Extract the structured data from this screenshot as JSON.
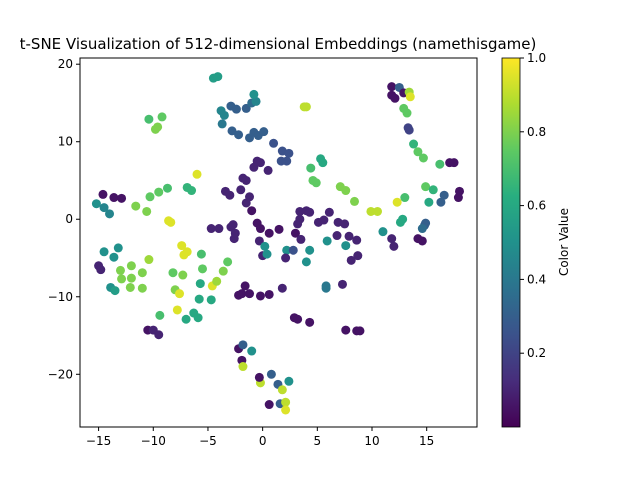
{
  "chart_data": {
    "type": "scatter",
    "title": "t-SNE Visualization of 512-dimensional Embeddings (namethisgame)",
    "xlabel": "",
    "ylabel": "",
    "xlim": [
      -16.7,
      19.6
    ],
    "ylim": [
      -26.8,
      20.8
    ],
    "xticks": [
      -15,
      -10,
      -5,
      0,
      5,
      10,
      15
    ],
    "yticks": [
      -20,
      -10,
      0,
      10,
      20
    ],
    "grid": false,
    "colormap": "viridis",
    "colorbar": {
      "label": "Color Value",
      "range": [
        0.0,
        1.0
      ],
      "ticks": [
        0.2,
        0.4,
        0.6,
        0.8,
        1.0
      ]
    },
    "points": [
      [
        -15.2,
        2.0,
        0.5
      ],
      [
        -14.5,
        1.5,
        0.45
      ],
      [
        -14.0,
        0.7,
        0.45
      ],
      [
        -14.6,
        3.2,
        0.05
      ],
      [
        -13.6,
        2.8,
        0.05
      ],
      [
        -12.9,
        2.7,
        0.05
      ],
      [
        -15.0,
        -6.0,
        0.1
      ],
      [
        -14.8,
        -6.5,
        0.1
      ],
      [
        -14.5,
        -4.2,
        0.5
      ],
      [
        -13.9,
        -8.8,
        0.5
      ],
      [
        -13.5,
        -9.2,
        0.55
      ],
      [
        -13.2,
        -3.7,
        0.5
      ],
      [
        -13.6,
        -4.9,
        0.5
      ],
      [
        -13.0,
        -6.6,
        0.8
      ],
      [
        -12.9,
        -7.7,
        0.8
      ],
      [
        -12.0,
        -6.0,
        0.8
      ],
      [
        -12.0,
        -7.6,
        0.8
      ],
      [
        -12.1,
        -8.8,
        0.8
      ],
      [
        -11.6,
        1.7,
        0.8
      ],
      [
        -11.0,
        -6.9,
        0.8
      ],
      [
        -11.0,
        -8.9,
        0.8
      ],
      [
        -10.6,
        1.0,
        0.8
      ],
      [
        -10.4,
        -5.2,
        0.85
      ],
      [
        -10.3,
        2.9,
        0.75
      ],
      [
        -10.4,
        12.9,
        0.7
      ],
      [
        -9.8,
        11.6,
        0.8
      ],
      [
        -9.6,
        11.9,
        0.8
      ],
      [
        -9.2,
        13.2,
        0.75
      ],
      [
        -9.5,
        3.5,
        0.75
      ],
      [
        -8.7,
        4.0,
        0.7
      ],
      [
        -8.6,
        -0.2,
        0.95
      ],
      [
        -8.4,
        -0.4,
        0.95
      ],
      [
        -8.2,
        -6.9,
        0.75
      ],
      [
        -8.0,
        -9.1,
        0.8
      ],
      [
        -7.6,
        -9.6,
        0.95
      ],
      [
        -7.4,
        -3.4,
        0.95
      ],
      [
        -7.3,
        -7.2,
        0.8
      ],
      [
        -7.2,
        -4.6,
        0.95
      ],
      [
        -6.9,
        -4.2,
        0.95
      ],
      [
        -9.4,
        -12.4,
        0.7
      ],
      [
        -7.8,
        -11.7,
        0.95
      ],
      [
        -7.0,
        -12.9,
        0.6
      ],
      [
        -6.3,
        -12.1,
        0.6
      ],
      [
        -5.9,
        -12.7,
        0.6
      ],
      [
        -6.9,
        4.1,
        0.65
      ],
      [
        -6.5,
        3.7,
        0.65
      ],
      [
        -6.0,
        5.8,
        0.95
      ],
      [
        -5.6,
        -4.5,
        0.7
      ],
      [
        -5.5,
        -6.4,
        0.75
      ],
      [
        -5.7,
        -8.3,
        0.6
      ],
      [
        -5.8,
        -10.3,
        0.6
      ],
      [
        -4.7,
        -10.4,
        0.6
      ],
      [
        -4.6,
        -8.6,
        0.95
      ],
      [
        -4.2,
        -8.0,
        0.85
      ],
      [
        -3.6,
        -6.7,
        0.8
      ],
      [
        -3.2,
        -5.5,
        0.75
      ],
      [
        -4.7,
        -1.2,
        0.1
      ],
      [
        -4.0,
        -1.2,
        0.1
      ],
      [
        -2.9,
        -1.0,
        0.1
      ],
      [
        -2.6,
        -2.5,
        0.1
      ],
      [
        -2.5,
        -1.8,
        0.1
      ],
      [
        -3.4,
        3.6,
        0.1
      ],
      [
        -3.0,
        3.1,
        0.1
      ],
      [
        -2.0,
        3.8,
        0.1
      ],
      [
        -1.8,
        5.3,
        0.1
      ],
      [
        -1.5,
        5.0,
        0.1
      ],
      [
        -1.5,
        2.1,
        0.1
      ],
      [
        -1.2,
        2.9,
        0.1
      ],
      [
        -0.8,
        6.7,
        0.1
      ],
      [
        -0.5,
        7.5,
        0.1
      ],
      [
        -0.2,
        7.3,
        0.1
      ],
      [
        0.5,
        6.3,
        0.1
      ],
      [
        -1.6,
        -8.6,
        0.05
      ],
      [
        -1.9,
        -9.6,
        0.05
      ],
      [
        -2.2,
        -9.8,
        0.05
      ],
      [
        -1.2,
        -9.6,
        0.05
      ],
      [
        -0.2,
        -9.9,
        0.05
      ],
      [
        0.6,
        -9.7,
        0.05
      ],
      [
        -0.3,
        -2.8,
        0.1
      ],
      [
        0.0,
        -4.7,
        0.1
      ],
      [
        0.2,
        -3.5,
        0.5
      ],
      [
        0.4,
        -4.5,
        0.5
      ],
      [
        -0.5,
        -0.5,
        0.05
      ],
      [
        -0.2,
        -1.2,
        0.05
      ],
      [
        0.6,
        -1.8,
        0.05
      ],
      [
        1.5,
        -1.3,
        0.05
      ],
      [
        -1.0,
        1.1,
        0.05
      ],
      [
        -2.7,
        -0.7,
        0.1
      ],
      [
        -2.2,
        -16.7,
        0.05
      ],
      [
        -1.8,
        -16.2,
        0.3
      ],
      [
        -1.0,
        -17.0,
        0.5
      ],
      [
        -1.9,
        -18.2,
        0.05
      ],
      [
        -1.8,
        -19.0,
        0.9
      ],
      [
        -0.2,
        -21.1,
        0.9
      ],
      [
        -0.3,
        -20.4,
        0.05
      ],
      [
        0.8,
        -20.0,
        0.3
      ],
      [
        1.4,
        -21.3,
        0.3
      ],
      [
        2.4,
        -20.9,
        0.5
      ],
      [
        1.8,
        -22.0,
        0.9
      ],
      [
        1.6,
        -23.8,
        0.3
      ],
      [
        2.1,
        -23.6,
        0.9
      ],
      [
        2.1,
        -24.6,
        0.95
      ],
      [
        0.6,
        -23.9,
        0.05
      ],
      [
        -4.5,
        18.2,
        0.55
      ],
      [
        -4.1,
        18.4,
        0.55
      ],
      [
        -3.8,
        14.0,
        0.45
      ],
      [
        -3.5,
        13.4,
        0.45
      ],
      [
        -3.7,
        12.3,
        0.4
      ],
      [
        -2.9,
        14.6,
        0.3
      ],
      [
        -2.4,
        14.2,
        0.3
      ],
      [
        -1.5,
        14.3,
        0.3
      ],
      [
        -1.0,
        15.0,
        0.35
      ],
      [
        -0.6,
        15.2,
        0.45
      ],
      [
        -0.8,
        16.1,
        0.5
      ],
      [
        -2.8,
        11.4,
        0.3
      ],
      [
        -2.2,
        10.9,
        0.3
      ],
      [
        -1.2,
        10.5,
        0.3
      ],
      [
        -0.8,
        11.2,
        0.3
      ],
      [
        -0.4,
        10.8,
        0.3
      ],
      [
        0.1,
        11.3,
        0.3
      ],
      [
        1.0,
        9.8,
        0.25
      ],
      [
        1.8,
        8.8,
        0.25
      ],
      [
        2.4,
        8.5,
        0.25
      ],
      [
        2.2,
        7.5,
        0.25
      ],
      [
        1.7,
        7.5,
        0.25
      ],
      [
        3.8,
        14.5,
        0.9
      ],
      [
        4.0,
        14.5,
        0.9
      ],
      [
        4.0,
        1.1,
        0.1
      ],
      [
        3.4,
        0.0,
        0.1
      ],
      [
        3.2,
        -0.6,
        0.1
      ],
      [
        3.4,
        1.0,
        0.1
      ],
      [
        4.3,
        0.9,
        0.1
      ],
      [
        5.1,
        -0.4,
        0.1
      ],
      [
        5.6,
        -0.1,
        0.1
      ],
      [
        6.1,
        0.9,
        0.1
      ],
      [
        6.9,
        -0.4,
        0.1
      ],
      [
        7.5,
        -0.6,
        0.1
      ],
      [
        6.8,
        -2.1,
        0.1
      ],
      [
        5.9,
        -2.8,
        0.5
      ],
      [
        7.9,
        -2.2,
        0.1
      ],
      [
        8.6,
        -2.7,
        0.1
      ],
      [
        7.6,
        -3.4,
        0.5
      ],
      [
        3.0,
        -1.8,
        0.05
      ],
      [
        3.5,
        -2.6,
        0.1
      ],
      [
        4.3,
        -4.0,
        0.5
      ],
      [
        4.0,
        -5.5,
        0.5
      ],
      [
        2.2,
        -4.0,
        0.5
      ],
      [
        2.8,
        -4.0,
        0.25
      ],
      [
        2.1,
        -5.0,
        0.1
      ],
      [
        1.8,
        -8.9,
        0.1
      ],
      [
        2.9,
        -12.7,
        0.05
      ],
      [
        3.2,
        -12.9,
        0.05
      ],
      [
        4.3,
        -13.3,
        0.05
      ],
      [
        4.4,
        6.6,
        0.7
      ],
      [
        4.6,
        5.0,
        0.75
      ],
      [
        4.9,
        4.7,
        0.75
      ],
      [
        5.3,
        7.8,
        0.6
      ],
      [
        5.5,
        7.3,
        0.6
      ],
      [
        5.8,
        -8.6,
        0.4
      ],
      [
        5.8,
        -8.9,
        0.4
      ],
      [
        7.1,
        4.2,
        0.8
      ],
      [
        7.6,
        3.7,
        0.8
      ],
      [
        8.4,
        2.3,
        0.8
      ],
      [
        7.3,
        -8.4,
        0.1
      ],
      [
        8.1,
        -5.3,
        0.1
      ],
      [
        8.7,
        -4.7,
        0.1
      ],
      [
        7.6,
        -14.3,
        0.05
      ],
      [
        8.6,
        -14.4,
        0.05
      ],
      [
        8.9,
        -14.4,
        0.05
      ],
      [
        9.9,
        1.0,
        0.9
      ],
      [
        10.5,
        1.0,
        0.9
      ],
      [
        11.0,
        -1.6,
        0.5
      ],
      [
        11.8,
        -2.5,
        0.1
      ],
      [
        12.0,
        -3.5,
        0.1
      ],
      [
        12.3,
        2.2,
        0.95
      ],
      [
        12.6,
        -0.4,
        0.6
      ],
      [
        12.8,
        0.0,
        0.6
      ],
      [
        13.0,
        2.8,
        0.7
      ],
      [
        11.8,
        17.1,
        0.05
      ],
      [
        11.8,
        16.0,
        0.05
      ],
      [
        12.1,
        15.6,
        0.05
      ],
      [
        12.5,
        17.0,
        0.3
      ],
      [
        12.9,
        16.3,
        0.05
      ],
      [
        13.4,
        16.4,
        0.85
      ],
      [
        13.5,
        15.8,
        0.95
      ],
      [
        12.9,
        14.3,
        0.75
      ],
      [
        13.2,
        13.7,
        0.75
      ],
      [
        13.3,
        11.8,
        0.2
      ],
      [
        13.4,
        11.5,
        0.2
      ],
      [
        13.8,
        9.7,
        0.65
      ],
      [
        14.2,
        8.7,
        0.75
      ],
      [
        14.7,
        7.9,
        0.75
      ],
      [
        16.2,
        7.1,
        0.7
      ],
      [
        17.1,
        7.3,
        0.05
      ],
      [
        17.5,
        7.3,
        0.05
      ],
      [
        14.9,
        4.2,
        0.75
      ],
      [
        15.6,
        3.8,
        0.65
      ],
      [
        16.6,
        3.1,
        0.3
      ],
      [
        18.0,
        3.6,
        0.05
      ],
      [
        17.9,
        2.8,
        0.05
      ],
      [
        15.2,
        2.2,
        0.6
      ],
      [
        16.3,
        2.2,
        0.3
      ],
      [
        14.8,
        -0.8,
        0.3
      ],
      [
        14.9,
        -0.5,
        0.3
      ],
      [
        14.6,
        -1.2,
        0.35
      ],
      [
        14.2,
        -2.5,
        0.05
      ],
      [
        14.6,
        -2.8,
        0.05
      ],
      [
        -10.5,
        -14.3,
        0.05
      ],
      [
        -10.0,
        -14.3,
        0.1
      ],
      [
        -9.5,
        -14.9,
        0.1
      ]
    ]
  }
}
